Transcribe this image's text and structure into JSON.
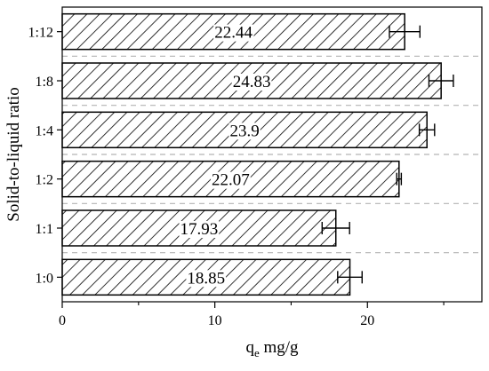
{
  "chart_data": {
    "type": "bar",
    "orientation": "horizontal",
    "categories": [
      "1:0",
      "1:1",
      "1:2",
      "1:4",
      "1:8",
      "1:12"
    ],
    "values": [
      18.85,
      17.93,
      22.07,
      23.9,
      24.83,
      22.44
    ],
    "value_labels": [
      "18.85",
      "17.93",
      "22.07",
      "23.9",
      "24.83",
      "22.44"
    ],
    "errors": [
      0.8,
      0.9,
      0.15,
      0.5,
      0.8,
      1.0
    ],
    "xlabel": {
      "main": "q",
      "subscript": "e",
      "unit": " mg/g"
    },
    "ylabel": "Solid-to-liquid ratio",
    "xlim": [
      0,
      27.5
    ],
    "xticks": [
      0,
      10,
      20
    ],
    "xtick_labels": [
      "0",
      "10",
      "20"
    ],
    "grid": "horizontal dashed separators",
    "bar_fill": "diagonal hatch",
    "colors": {
      "bar_stroke": "#000000",
      "hatch": "#000000",
      "separator": "#b4b4b4",
      "label_bg": "#ffffff"
    }
  }
}
